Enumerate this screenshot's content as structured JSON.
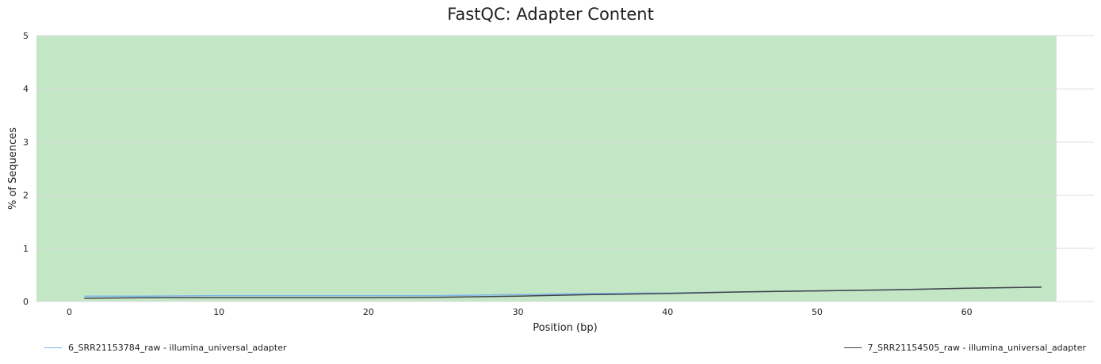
{
  "chart_data": {
    "type": "line",
    "title": "FastQC: Adapter Content",
    "xlabel": "Position (bp)",
    "ylabel": "% of Sequences",
    "xlim": [
      -2.2,
      68.5
    ],
    "ylim": [
      0,
      5
    ],
    "xticks": [
      0,
      10,
      20,
      30,
      40,
      50,
      60
    ],
    "yticks": [
      0,
      1,
      2,
      3,
      4,
      5
    ],
    "background_band": {
      "x": [
        -2.2,
        66
      ],
      "y": [
        0,
        5
      ],
      "color": "#c3e6c5"
    },
    "grid": true,
    "legend_placement": "bottom",
    "series": [
      {
        "name": "6_SRR21153784_raw - illumina_universal_adapter",
        "color": "#7cb5ec",
        "x": [
          1,
          5,
          10,
          15,
          20,
          25,
          30,
          35,
          40,
          45,
          50,
          55,
          60,
          65
        ],
        "y": [
          0.1,
          0.1,
          0.11,
          0.11,
          0.11,
          0.11,
          0.13,
          0.15,
          0.16,
          0.18,
          0.2,
          0.22,
          0.25,
          0.27
        ]
      },
      {
        "name": "7_SRR21154505_raw - illumina_universal_adapter",
        "color": "#434348",
        "x": [
          1,
          5,
          10,
          15,
          20,
          25,
          30,
          35,
          40,
          45,
          50,
          55,
          60,
          65
        ],
        "y": [
          0.06,
          0.07,
          0.07,
          0.07,
          0.07,
          0.08,
          0.1,
          0.13,
          0.15,
          0.18,
          0.2,
          0.22,
          0.25,
          0.27
        ]
      }
    ]
  }
}
